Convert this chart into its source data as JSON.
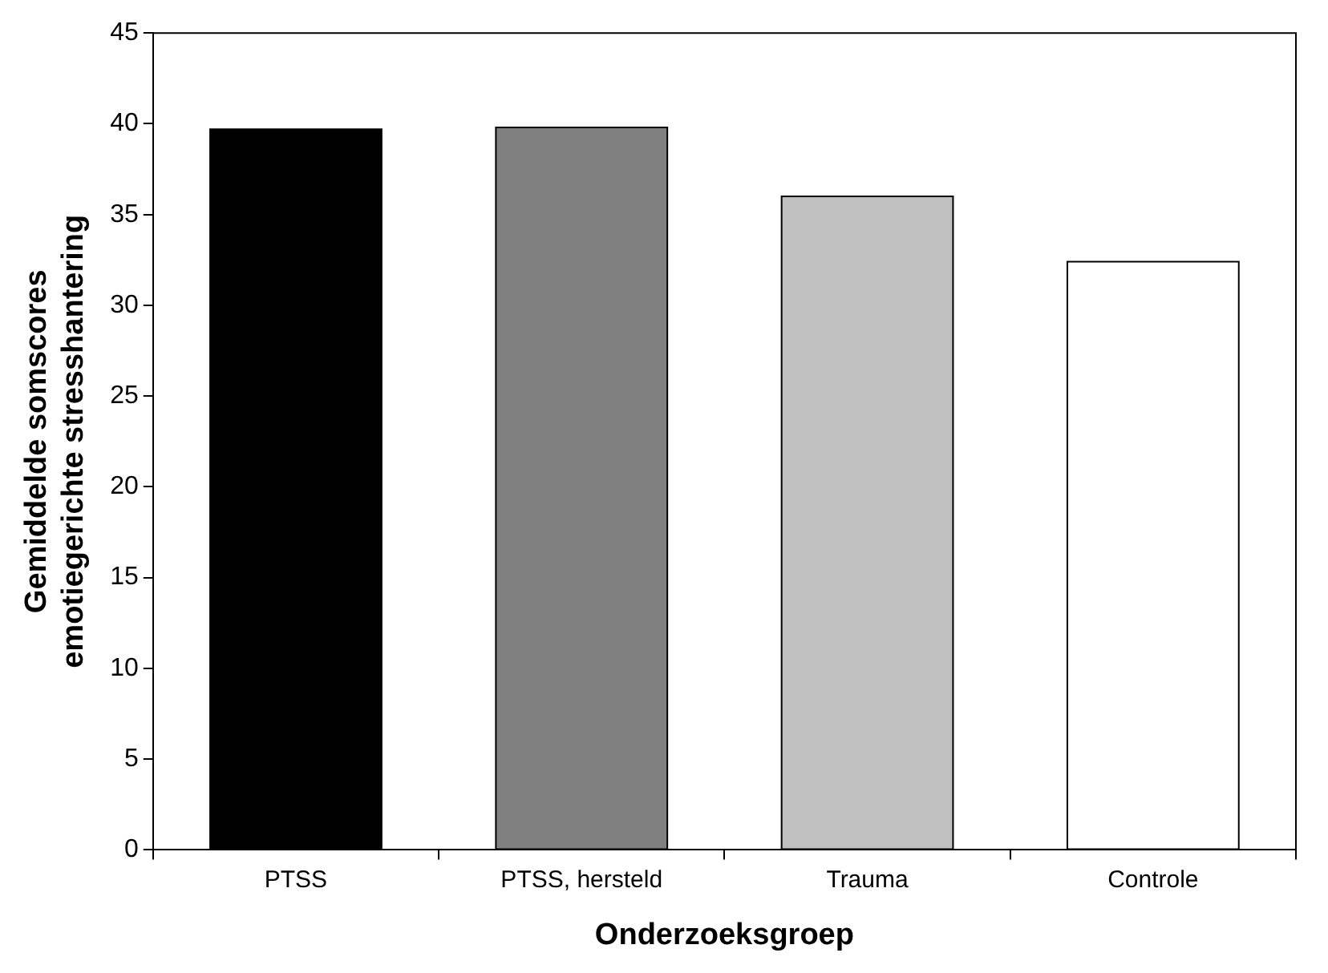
{
  "chart_data": {
    "type": "bar",
    "xlabel": "Onderzoeksgroep",
    "ylabel": "Gemiddelde somscores\nemotiegerichte stresshantering",
    "categories": [
      "PTSS",
      "PTSS, hersteld",
      "Trauma",
      "Controle"
    ],
    "values": [
      39.7,
      39.8,
      36.0,
      32.4
    ],
    "colors": [
      "#000000",
      "#808080",
      "#c0c0c0",
      "#ffffff"
    ],
    "ylim": [
      0,
      45
    ],
    "yticks": [
      0,
      5,
      10,
      15,
      20,
      25,
      30,
      35,
      40,
      45
    ],
    "grid": false,
    "legend": false
  }
}
